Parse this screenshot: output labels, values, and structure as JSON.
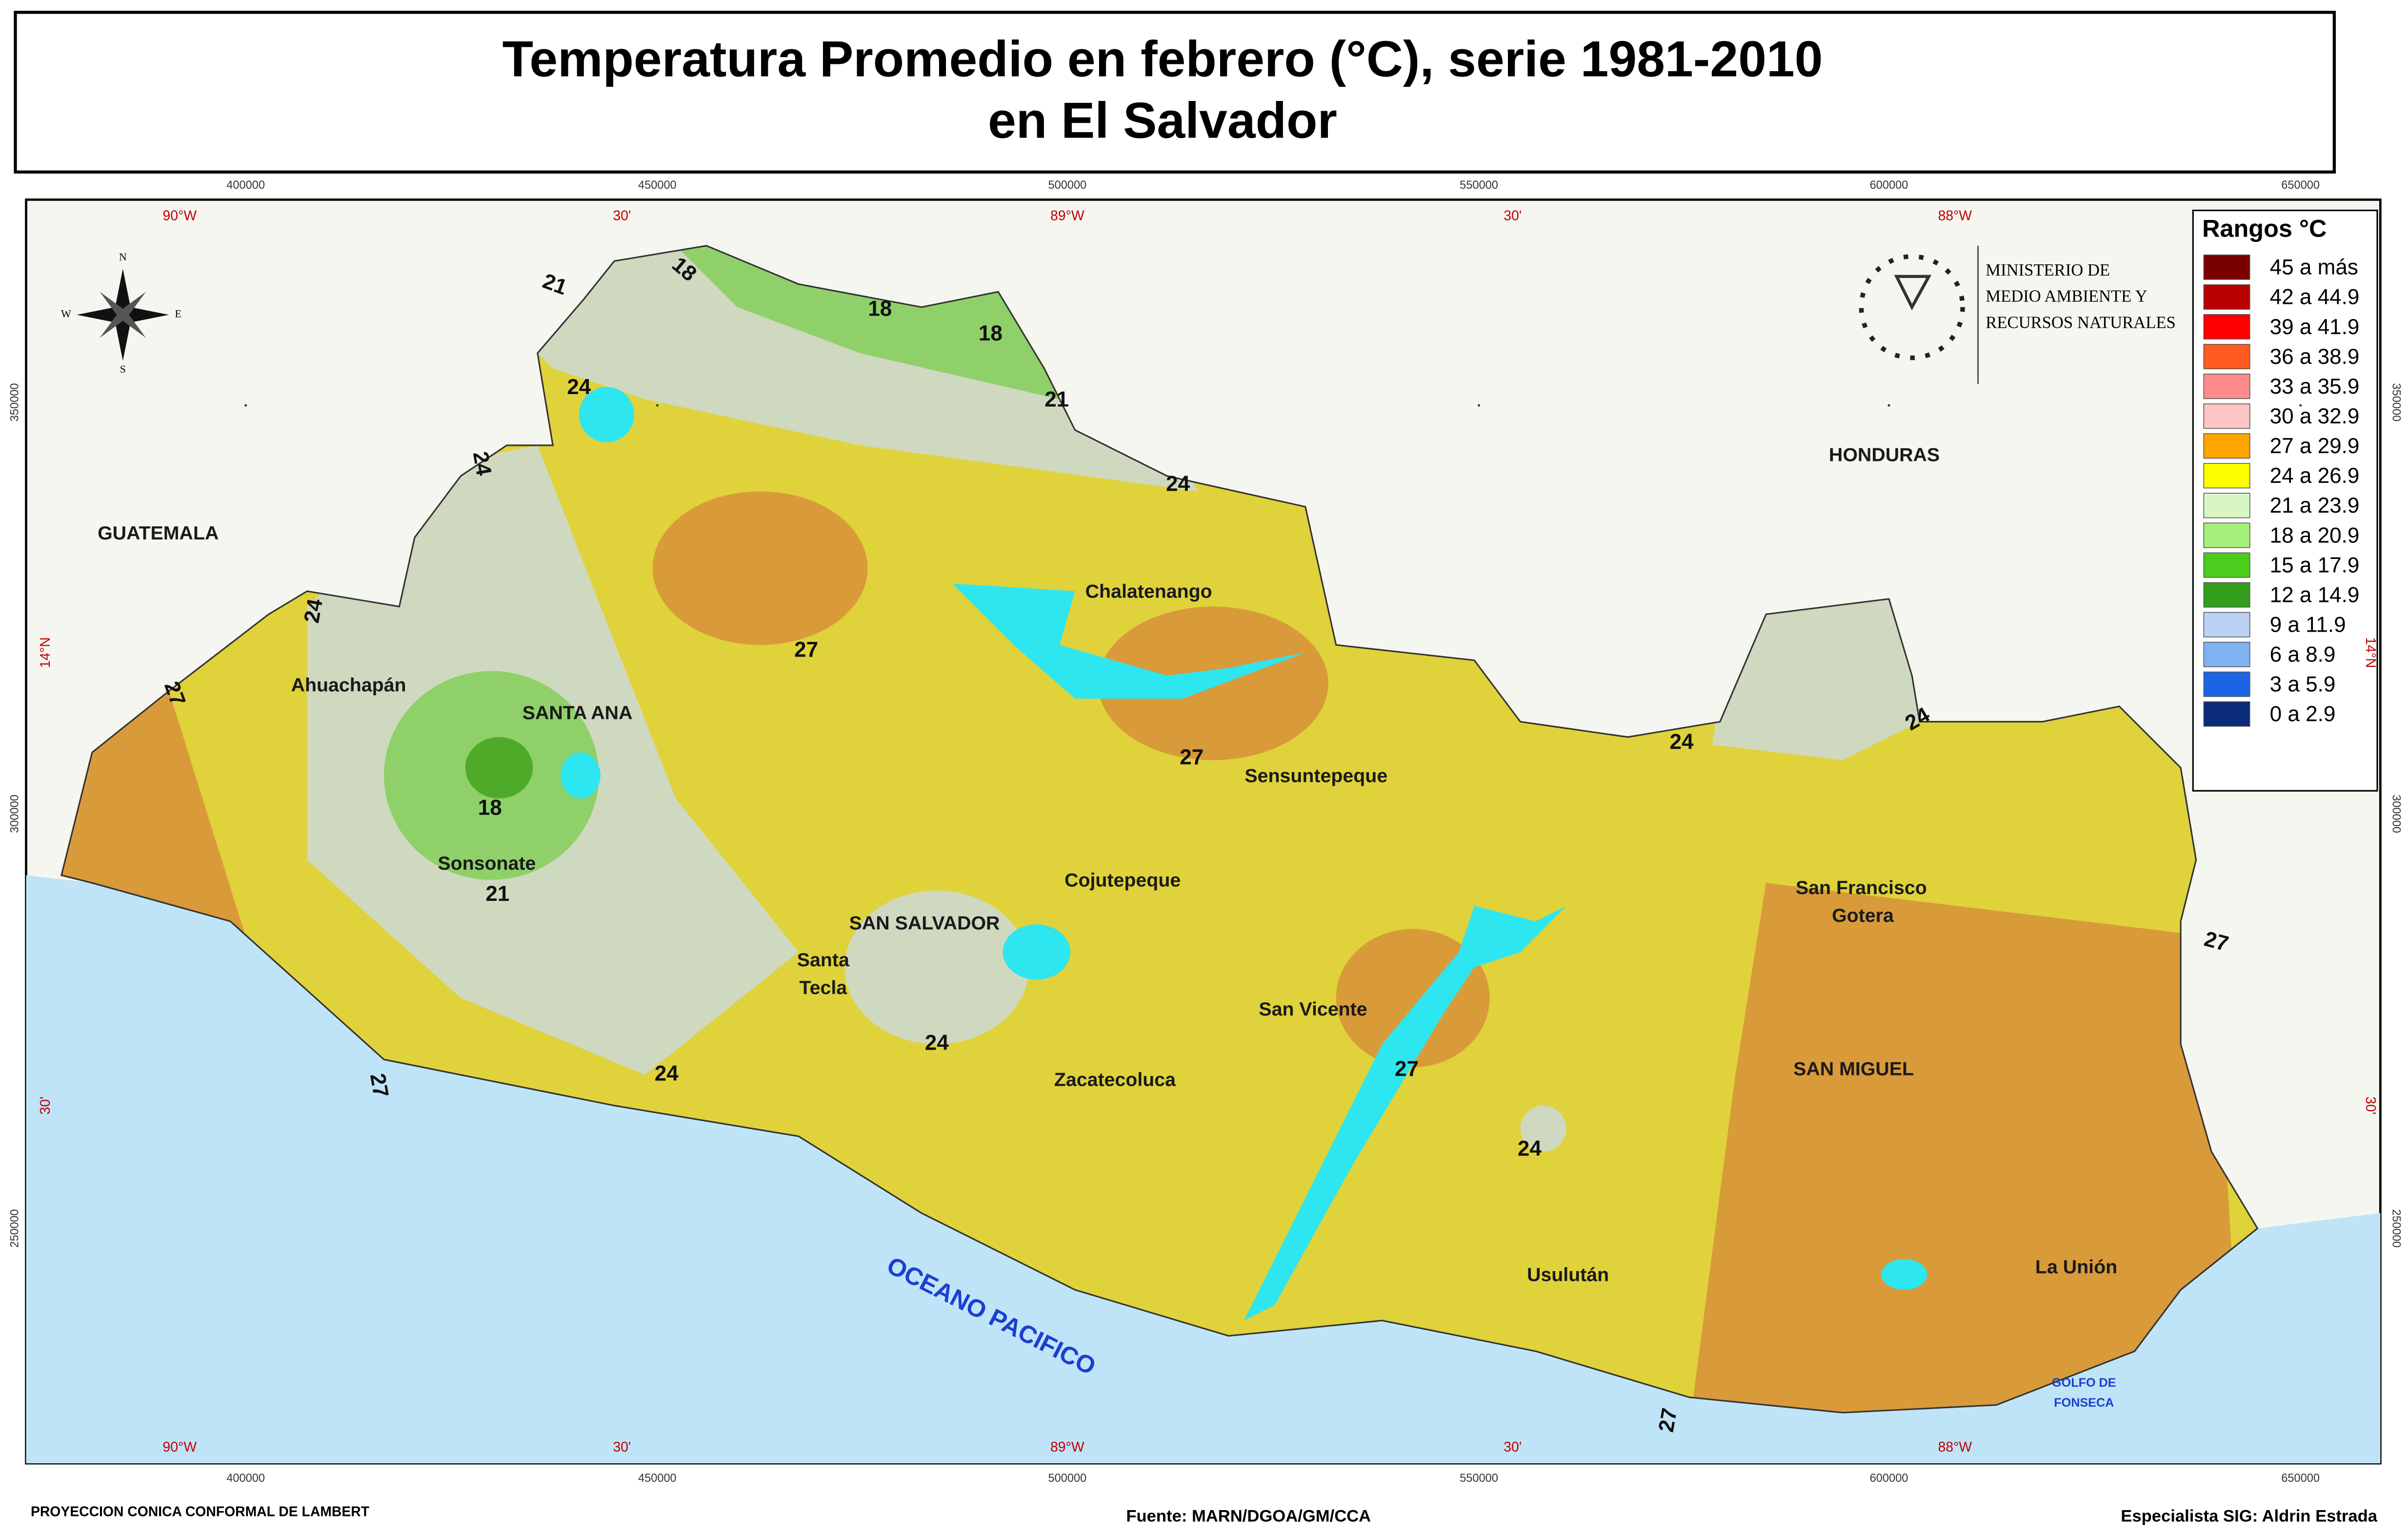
{
  "title": [
    "Temperatura Promedio en febrero (°C), serie 1981-2010",
    "en El Salvador"
  ],
  "grid": {
    "eastings": [
      400000,
      450000,
      500000,
      550000,
      600000,
      650000
    ],
    "longitudes": [
      "90°W",
      "30'",
      "89°W",
      "30'",
      "88°W"
    ],
    "northings": [
      350000,
      300000,
      250000
    ],
    "latitudes": [
      "14°N",
      "30'"
    ]
  },
  "compass": [
    "N",
    "S",
    "E",
    "W"
  ],
  "ministry": [
    "MINISTERIO DE",
    "MEDIO AMBIENTE Y",
    "RECURSOS NATURALES"
  ],
  "legend": {
    "title": "Rangos °C",
    "items": [
      {
        "label": "45 a más",
        "color": "#7a0000"
      },
      {
        "label": "42 a 44.9",
        "color": "#b80000"
      },
      {
        "label": "39 a 41.9",
        "color": "#ff0000"
      },
      {
        "label": "36 a 38.9",
        "color": "#ff5a1f"
      },
      {
        "label": "33 a 35.9",
        "color": "#ff8c8c"
      },
      {
        "label": "30 a 32.9",
        "color": "#ffc4c4"
      },
      {
        "label": "27 a 29.9",
        "color": "#ffa500"
      },
      {
        "label": "24 a 26.9",
        "color": "#ffff00"
      },
      {
        "label": "21 a 23.9",
        "color": "#d8f5c4"
      },
      {
        "label": "18 a 20.9",
        "color": "#a4f07a"
      },
      {
        "label": "15 a 17.9",
        "color": "#4ccc1c"
      },
      {
        "label": "12 a 14.9",
        "color": "#339e1c"
      },
      {
        "label": "9 a 11.9",
        "color": "#bcd2f5"
      },
      {
        "label": "6 a 8.9",
        "color": "#7fb2f0"
      },
      {
        "label": "3 a 5.9",
        "color": "#1c64e6"
      },
      {
        "label": "0 a 2.9",
        "color": "#0a2a7a"
      }
    ]
  },
  "places": [
    "GUATEMALA",
    "HONDURAS",
    "Chalatenango",
    "Ahuachapán",
    "SANTA ANA",
    "Sensuntepeque",
    "Sonsonate",
    "Cojutepeque",
    "SAN SALVADOR",
    "Santa",
    "Tecla",
    "San Francisco",
    "Gotera",
    "San Vicente",
    "SAN MIGUEL",
    "Zacatecoluca",
    "Usulután",
    "La Unión",
    "GOLFO DE",
    "FONSECA",
    "OCEANO PACIFICO"
  ],
  "contours": [
    21,
    18,
    18,
    18,
    21,
    24,
    24,
    24,
    24,
    27,
    27,
    27,
    24,
    24,
    18,
    21,
    27,
    24,
    27,
    24,
    27,
    24,
    27
  ],
  "footer": [
    "PROYECCION CONICA CONFORMAL DE LAMBERT",
    "Fuente: MARN/DGOA/GM/CCA",
    "Especialista SIG: Aldrin Estrada"
  ]
}
